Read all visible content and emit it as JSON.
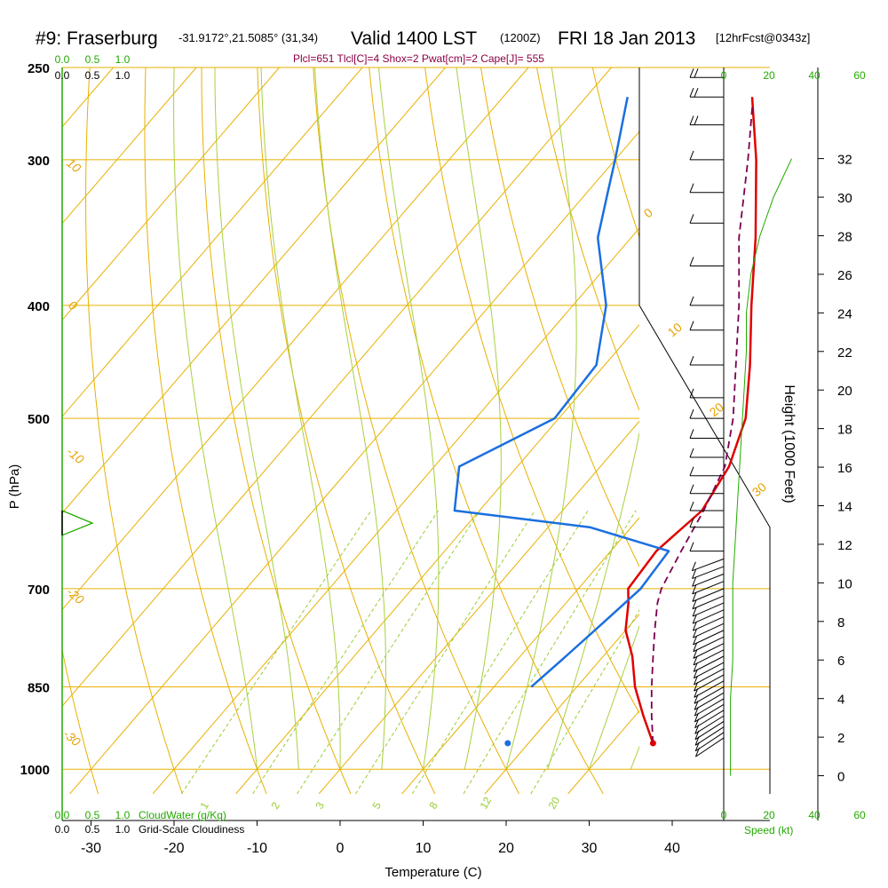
{
  "header": {
    "station": "#9: Fraserburg",
    "coords": "-31.9172°,21.5085° (31,34)",
    "valid": "Valid 1400 LST",
    "zulu": "(1200Z)",
    "date": "FRI 18 Jan 2013",
    "forecast": "[12hrFcst@0343z]",
    "indices": "Plcl=651 Tlcl[C]=4 Shox=2 Pwat[cm]=2 Cape[J]= 555"
  },
  "axes": {
    "ylabel": "P (hPa)",
    "xlabel": "Temperature (C)",
    "height_label": "Height (1000 Feet)",
    "speed_label": "Speed (kt)",
    "cloudwater_label": "CloudWater (g/Kg)",
    "cloudiness_label": "Grid-Scale Cloudiness"
  },
  "colors": {
    "isotherm": "#e8b000",
    "mixing": "#99cc33",
    "temperature": "#e00000",
    "dewpoint": "#1a6fe0",
    "parcel": "#7a0050",
    "speed": "#22aa00",
    "barb": "#000000"
  },
  "chart_data": {
    "type": "line",
    "skewt": true,
    "title": "#9: Fraserburg -31.9172°,21.5085° (31,34) Valid 1400 LST (1200Z) FRI 18 Jan 2013 [12hrFcst@0343z]",
    "pressure_ticks": [
      "250",
      "300",
      "400",
      "500",
      "700",
      "850",
      "1000"
    ],
    "temp_ticks": [
      "-30",
      "-20",
      "-10",
      "0",
      "10",
      "20",
      "30",
      "40"
    ],
    "height_ticks": [
      "0",
      "2",
      "4",
      "6",
      "8",
      "10",
      "12",
      "14",
      "16",
      "18",
      "20",
      "22",
      "24",
      "26",
      "28",
      "30",
      "32"
    ],
    "speed_ticks": [
      "0",
      "20",
      "40",
      "60"
    ],
    "cloud_ticks": [
      "0.0",
      "0.5",
      "1.0"
    ],
    "isotherm_labels": [
      "0",
      "10",
      "20",
      "30"
    ],
    "dry_adiabat_labels": [
      "10",
      "0",
      "-10",
      "-20",
      "-30"
    ],
    "mixing_ratio_labels": [
      "1",
      "2",
      "3",
      "5",
      "8",
      "12",
      "20"
    ],
    "series": [
      {
        "name": "Temperature",
        "points": [
          [
            950,
            35.0
          ],
          [
            900,
            31.0
          ],
          [
            850,
            27.0
          ],
          [
            800,
            23.5
          ],
          [
            760,
            20.0
          ],
          [
            720,
            17.5
          ],
          [
            700,
            16.0
          ],
          [
            650,
            15.5
          ],
          [
            630,
            16.0
          ],
          [
            600,
            16.8
          ],
          [
            550,
            15.5
          ],
          [
            500,
            12.5
          ],
          [
            450,
            7.5
          ],
          [
            400,
            1.5
          ],
          [
            350,
            -5.0
          ],
          [
            300,
            -13.0
          ],
          [
            265,
            -20.0
          ]
        ]
      },
      {
        "name": "Dew point",
        "points": [
          [
            850,
            14.5
          ],
          [
            800,
            15.5
          ],
          [
            750,
            16.5
          ],
          [
            700,
            17.5
          ],
          [
            650,
            17.0
          ],
          [
            620,
            5.0
          ],
          [
            600,
            -13.0
          ],
          [
            550,
            -17.0
          ],
          [
            500,
            -10.5
          ],
          [
            450,
            -11.0
          ],
          [
            400,
            -16.0
          ],
          [
            350,
            -24.0
          ],
          [
            320,
            -27.5
          ],
          [
            300,
            -30.0
          ],
          [
            265,
            -35.0
          ]
        ]
      },
      {
        "name": "Parcel",
        "points": [
          [
            950,
            35.0
          ],
          [
            900,
            32.0
          ],
          [
            850,
            29.0
          ],
          [
            800,
            26.0
          ],
          [
            760,
            23.5
          ],
          [
            720,
            21.0
          ],
          [
            700,
            20.0
          ],
          [
            650,
            18.5
          ],
          [
            600,
            17.0
          ],
          [
            550,
            15.0
          ],
          [
            500,
            11.0
          ],
          [
            450,
            5.8
          ],
          [
            400,
            0.0
          ],
          [
            350,
            -7.0
          ],
          [
            300,
            -14.0
          ],
          [
            270,
            -19.0
          ]
        ]
      }
    ],
    "surface_markers": [
      {
        "name": "sfc-temp",
        "t": 35.0,
        "p": 950
      },
      {
        "name": "sfc-dew",
        "t": 17.5,
        "p": 950
      }
    ],
    "speed_profile_kt": [
      [
        0,
        3
      ],
      [
        2,
        3
      ],
      [
        4,
        3
      ],
      [
        6,
        4
      ],
      [
        8,
        4
      ],
      [
        10,
        4
      ],
      [
        12,
        5
      ],
      [
        14,
        6
      ],
      [
        16,
        7
      ],
      [
        18,
        8
      ],
      [
        20,
        9
      ],
      [
        22,
        10
      ],
      [
        24,
        10
      ],
      [
        26,
        12
      ],
      [
        28,
        16
      ],
      [
        30,
        22
      ],
      [
        32,
        30
      ]
    ],
    "cloudwater_profile": [
      [
        600,
        0.0
      ],
      [
        615,
        0.5
      ],
      [
        630,
        0.0
      ]
    ]
  }
}
